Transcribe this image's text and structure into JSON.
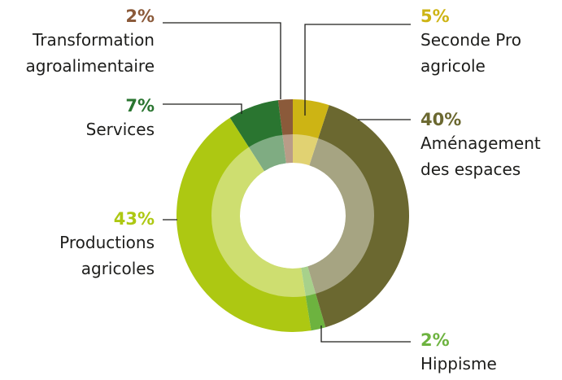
{
  "chart_data": {
    "type": "donut",
    "categories": [
      "Seconde Pro agricole",
      "Aménagement des espaces",
      "Hippisme",
      "Productions agricoles",
      "Services",
      "Transformation agroalimentaire"
    ],
    "values": [
      5,
      40,
      2,
      43,
      7,
      2
    ],
    "value_labels": [
      "5%",
      "40%",
      "2%",
      "43%",
      "7%",
      "2%"
    ],
    "colors": [
      "#cdb414",
      "#6b6830",
      "#6db33f",
      "#adc812",
      "#2a7530",
      "#8b5a3a"
    ]
  }
}
